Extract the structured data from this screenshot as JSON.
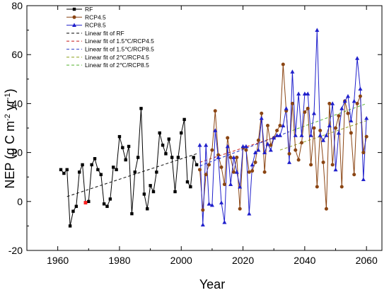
{
  "chart_data": {
    "type": "line",
    "xlabel": "Year",
    "ylabel_parts": {
      "main": "NEP (g C m",
      "exp1": "-2",
      "mid": " yr",
      "exp2": "-1",
      "end": ")"
    },
    "xlim": [
      1950,
      2065
    ],
    "ylim": [
      -20,
      80
    ],
    "xticks": [
      "1960",
      "1980",
      "2000",
      "2020",
      "2040",
      "2060"
    ],
    "yticks": [
      "-20",
      "0",
      "20",
      "40",
      "60",
      "80"
    ],
    "legend_position": "top-left",
    "colors": {
      "RF": "#000000",
      "RCP4.5": "#8B4513",
      "RCP8.5": "#2020cc",
      "fit_RF": "#222222",
      "fit_15_45": "#cc3333",
      "fit_15_85": "#3344cc",
      "fit_2_45": "#99aa33",
      "fit_2_85": "#66bb44"
    },
    "series": [
      {
        "name": "RF",
        "marker": "square",
        "x": [
          1961,
          1962,
          1963,
          1964,
          1965,
          1966,
          1967,
          1968,
          1969,
          1970,
          1971,
          1972,
          1973,
          1974,
          1975,
          1976,
          1977,
          1978,
          1979,
          1980,
          1981,
          1982,
          1983,
          1984,
          1985,
          1986,
          1987,
          1988,
          1989,
          1990,
          1991,
          1992,
          1993,
          1994,
          1995,
          1996,
          1997,
          1998,
          1999,
          2000,
          2001,
          2002,
          2003,
          2004,
          2005
        ],
        "y": [
          13,
          11.5,
          13,
          -10,
          -4,
          -2,
          12,
          15,
          -0.5,
          0,
          15,
          17.5,
          13,
          11,
          -1,
          -2,
          1,
          14,
          13,
          26.5,
          22,
          17,
          22.5,
          -5,
          12,
          18,
          38,
          3,
          -3,
          6.5,
          4,
          12,
          28,
          23,
          19.5,
          25.5,
          18,
          4,
          18,
          28,
          33.5,
          8,
          6,
          18,
          15
        ]
      },
      {
        "name": "RCP4.5",
        "marker": "circle",
        "x": [
          2006,
          2007,
          2008,
          2009,
          2010,
          2011,
          2012,
          2013,
          2014,
          2015,
          2016,
          2017,
          2018,
          2019,
          2020,
          2021,
          2022,
          2023,
          2024,
          2025,
          2026,
          2027,
          2028,
          2029,
          2030,
          2031,
          2032,
          2033,
          2034,
          2035,
          2036,
          2037,
          2038,
          2039,
          2040,
          2041,
          2042,
          2043,
          2044,
          2045,
          2046,
          2047,
          2048,
          2049,
          2050,
          2051,
          2052,
          2053,
          2054,
          2055,
          2056,
          2057,
          2058,
          2059,
          2060
        ],
        "y": [
          13,
          -3.5,
          11,
          15,
          21,
          37,
          19,
          14,
          7,
          26,
          18,
          12,
          18,
          -3,
          22,
          21,
          12,
          12.5,
          16,
          25,
          36,
          12,
          31,
          23,
          26,
          29,
          31,
          56,
          37,
          19.5,
          40,
          21,
          17,
          24,
          36.5,
          38,
          15,
          30,
          6,
          29,
          16,
          -3,
          40,
          15,
          30,
          35,
          6,
          41,
          36,
          28,
          11,
          40,
          43,
          20,
          26.5
        ]
      },
      {
        "name": "RCP8.5",
        "marker": "triangle",
        "x": [
          2006,
          2007,
          2008,
          2009,
          2010,
          2011,
          2012,
          2013,
          2014,
          2015,
          2016,
          2017,
          2018,
          2019,
          2020,
          2021,
          2022,
          2023,
          2024,
          2025,
          2026,
          2027,
          2028,
          2029,
          2030,
          2031,
          2032,
          2033,
          2034,
          2035,
          2036,
          2037,
          2038,
          2039,
          2040,
          2041,
          2042,
          2043,
          2044,
          2045,
          2046,
          2047,
          2048,
          2049,
          2050,
          2051,
          2052,
          2053,
          2054,
          2055,
          2056,
          2057,
          2058,
          2059,
          2060
        ],
        "y": [
          23,
          -9.5,
          23,
          -1,
          -1.5,
          29,
          18,
          -0.5,
          -8.5,
          22.5,
          7,
          18,
          12,
          6,
          22.5,
          22.5,
          -5,
          15,
          20,
          21,
          34,
          20,
          23.5,
          21,
          26,
          27,
          27,
          31,
          38,
          16,
          53,
          27,
          44,
          27,
          44,
          44,
          27,
          36,
          70,
          27,
          25,
          27,
          31,
          40,
          13,
          28,
          38,
          41,
          43,
          33,
          41,
          58.5,
          46,
          9,
          34
        ]
      }
    ],
    "fits": [
      {
        "name": "Linear fit of RF",
        "x": [
          1963,
          2005
        ],
        "y": [
          2,
          19.5
        ]
      },
      {
        "name": "Linear fit of 1.5℃/RCP4.5",
        "x": [
          2006,
          2031
        ],
        "y": [
          16,
          26.5
        ]
      },
      {
        "name": "Linear fit of 1.5℃/RCP8.5",
        "x": [
          2006,
          2035
        ],
        "y": [
          14.5,
          28.5
        ]
      },
      {
        "name": "Linear fit of 2℃/RCP4.5",
        "x": [
          2032,
          2060
        ],
        "y": [
          21,
          33
        ]
      },
      {
        "name": "Linear fit of 2℃/RCP8.5",
        "x": [
          2036,
          2060
        ],
        "y": [
          29,
          40
        ]
      }
    ],
    "highlight": {
      "x": 1969,
      "y": -0.5
    }
  }
}
